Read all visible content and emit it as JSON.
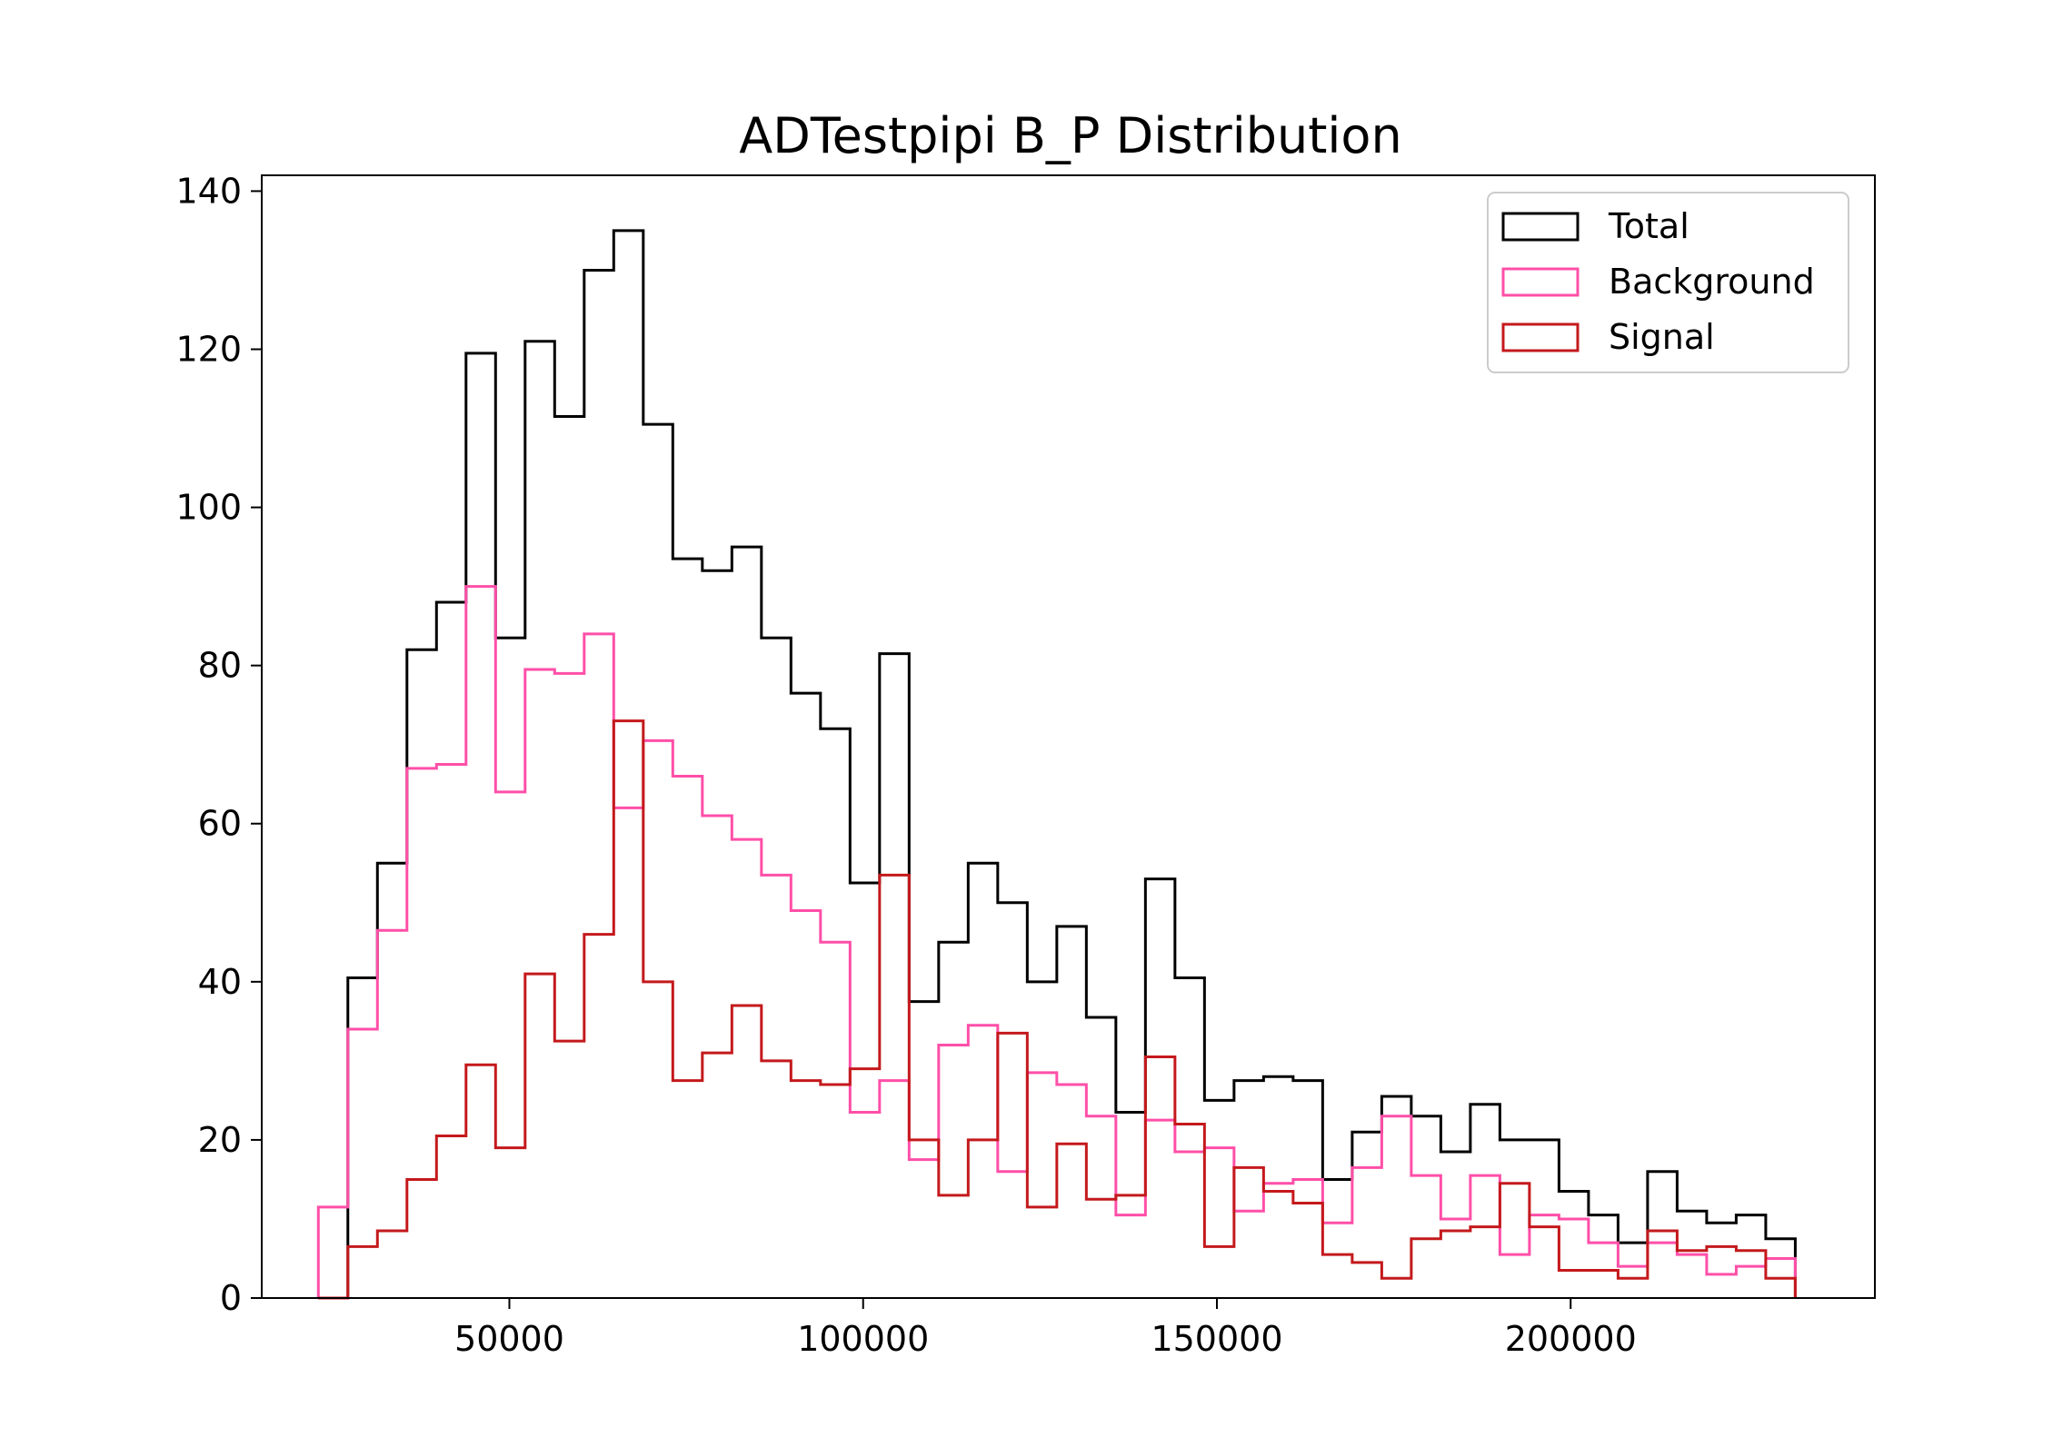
{
  "chart_data": {
    "type": "step-histogram",
    "title": "ADTestpipi B_P Distribution",
    "xlabel": "",
    "ylabel": "",
    "xlim": [
      15000,
      243000
    ],
    "ylim": [
      0,
      142
    ],
    "x_ticks": [
      50000,
      100000,
      150000,
      200000
    ],
    "x_tick_labels": [
      "50000",
      "100000",
      "150000",
      "200000"
    ],
    "y_ticks": [
      0,
      20,
      40,
      60,
      80,
      100,
      120,
      140
    ],
    "y_tick_labels": [
      "0",
      "20",
      "40",
      "60",
      "80",
      "100",
      "120",
      "140"
    ],
    "grid": false,
    "legend": {
      "location": "upper right",
      "entries": [
        "Total",
        "Background",
        "Signal"
      ]
    },
    "bin_start": 23000,
    "bin_width": 4175,
    "series": [
      {
        "name": "Total",
        "color": "#000000",
        "values": [
          0,
          40.5,
          55,
          82,
          88,
          119.5,
          83.5,
          121,
          111.5,
          130,
          135,
          110.5,
          93.5,
          92,
          95,
          83.5,
          76.5,
          72,
          52.5,
          81.5,
          37.5,
          45,
          55,
          50,
          40,
          47,
          35.5,
          23.5,
          53,
          40.5,
          25,
          27.5,
          28,
          27.5,
          15,
          21,
          25.5,
          23,
          18.5,
          24.5,
          20,
          20,
          13.5,
          10.5,
          7,
          16,
          11,
          9.5,
          10.5,
          7.5
        ]
      },
      {
        "name": "Background",
        "color": "#ff4fa8",
        "values": [
          11.5,
          34,
          46.5,
          67,
          67.5,
          90,
          64,
          79.5,
          79,
          84,
          62,
          70.5,
          66,
          61,
          58,
          53.5,
          49,
          45,
          23.5,
          27.5,
          17.5,
          32,
          34.5,
          16,
          28.5,
          27,
          23,
          10.5,
          22.5,
          18.5,
          19,
          11,
          14.5,
          15,
          9.5,
          16.5,
          23,
          15.5,
          10,
          15.5,
          5.5,
          10.5,
          10,
          7,
          4,
          7,
          5.5,
          3,
          4,
          5
        ]
      },
      {
        "name": "Signal",
        "color": "#c4191c",
        "values": [
          0,
          6.5,
          8.5,
          15,
          20.5,
          29.5,
          19,
          41,
          32.5,
          46,
          73,
          40,
          27.5,
          31,
          37,
          30,
          27.5,
          27,
          29,
          53.5,
          20,
          13,
          20,
          33.5,
          11.5,
          19.5,
          12.5,
          13,
          30.5,
          22,
          6.5,
          16.5,
          13.5,
          12,
          5.5,
          4.5,
          2.5,
          7.5,
          8.5,
          9,
          14.5,
          9,
          3.5,
          3.5,
          2.5,
          8.5,
          6,
          6.5,
          6,
          2.5
        ]
      }
    ]
  }
}
